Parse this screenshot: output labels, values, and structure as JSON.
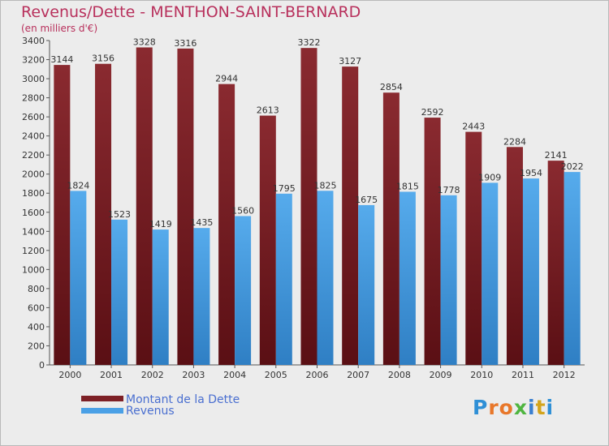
{
  "chart_data": {
    "type": "bar",
    "title": "Revenus/Dette - MENTHON-SAINT-BERNARD",
    "subtitle": "(en milliers d'€)",
    "categories": [
      "2000",
      "2001",
      "2002",
      "2003",
      "2004",
      "2005",
      "2006",
      "2007",
      "2008",
      "2009",
      "2010",
      "2011",
      "2012"
    ],
    "series": [
      {
        "name": "Montant de la Dette",
        "values": [
          3144,
          3156,
          3328,
          3316,
          2944,
          2613,
          3322,
          3127,
          2854,
          2592,
          2443,
          2284,
          2141
        ],
        "color": "#7d2026"
      },
      {
        "name": "Revenus",
        "values": [
          1824,
          1523,
          1419,
          1435,
          1560,
          1795,
          1825,
          1675,
          1815,
          1778,
          1909,
          1954,
          2022
        ],
        "color": "#4aa0e6"
      }
    ],
    "ylim": [
      0,
      3400
    ],
    "ytick_step": 200,
    "grid": false,
    "xlabel": "",
    "ylabel": ""
  },
  "legend": {
    "position": "bottom-left"
  },
  "logo": {
    "text": "Proxiti",
    "letter_colors": [
      "#2e8fd6",
      "#e8772a",
      "#e8772a",
      "#4fb540",
      "#3a7fd0",
      "#d4a41c",
      "#2e8fd6"
    ]
  }
}
